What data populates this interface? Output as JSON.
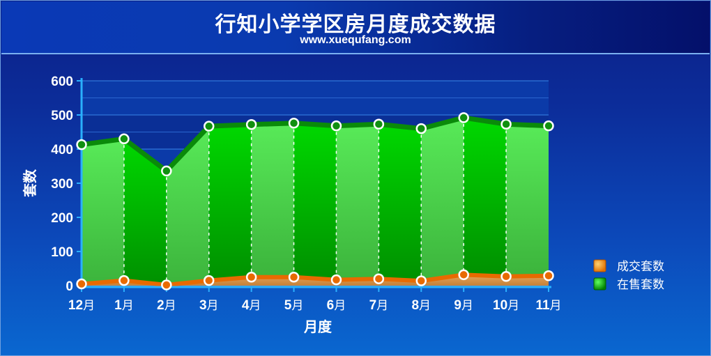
{
  "header": {
    "title": "行知小学学区房月度成交数据",
    "subtitle": "www.xuequfang.com"
  },
  "chart_data": {
    "type": "area",
    "title": "行知小学学区房月度成交数据",
    "subtitle": "www.xuequfang.com",
    "xlabel": "月度",
    "ylabel": "套数",
    "categories": [
      "12月",
      "1月",
      "2月",
      "3月",
      "4月",
      "5月",
      "6月",
      "7月",
      "8月",
      "9月",
      "10月",
      "11月"
    ],
    "ylim": [
      0,
      600
    ],
    "yticks": [
      0,
      100,
      200,
      300,
      400,
      500,
      600
    ],
    "grid": true,
    "legend_position": "right",
    "series": [
      {
        "name": "成交套数",
        "color": "#f08a10",
        "values": [
          5,
          15,
          2,
          15,
          25,
          25,
          17,
          20,
          14,
          32,
          27,
          29
        ]
      },
      {
        "name": "在售套数",
        "color": "#10c010",
        "values": [
          413,
          430,
          336,
          467,
          472,
          476,
          468,
          473,
          460,
          492,
          473,
          468
        ]
      }
    ]
  }
}
